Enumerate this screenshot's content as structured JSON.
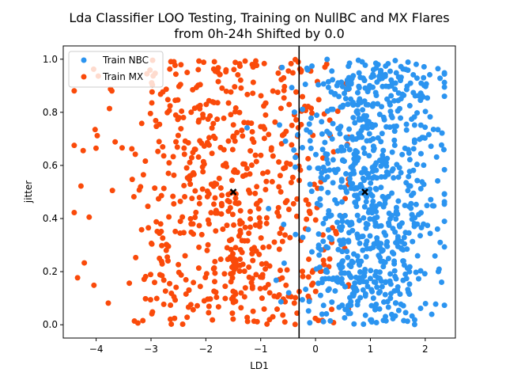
{
  "chart_data": {
    "type": "scatter",
    "title_line1": "Lda Classifier LOO Testing, Training on NullBC and MX Flares",
    "title_line2": "from 0h-24h Shifted by 0.0",
    "xlabel": "LD1",
    "ylabel": "jitter",
    "xlim": [
      -4.6,
      2.55
    ],
    "ylim": [
      -0.05,
      1.05
    ],
    "xticks": [
      -4,
      -3,
      -2,
      -1,
      0,
      1,
      2
    ],
    "yticks": [
      0.0,
      0.2,
      0.4,
      0.6,
      0.8,
      1.0
    ],
    "xtick_labels": [
      "−4",
      "−3",
      "−2",
      "−1",
      "0",
      "1",
      "2"
    ],
    "ytick_labels": [
      "0.0",
      "0.2",
      "0.4",
      "0.6",
      "0.8",
      "1.0"
    ],
    "grid": false,
    "legend_position": "upper-left",
    "decision_boundary_x": -0.3,
    "series": [
      {
        "name": "Train NBC",
        "color": "#2b94f0",
        "count": 800,
        "x_mean": 1.0,
        "x_sd": 0.6,
        "x_range": [
          -2.0,
          2.35
        ]
      },
      {
        "name": "Train MX",
        "color": "#fa4a0a",
        "count": 650,
        "x_mean": -1.5,
        "x_sd": 1.05,
        "x_range": [
          -4.4,
          0.6
        ]
      }
    ],
    "centroids": [
      {
        "x": -1.5,
        "y": 0.5,
        "color": "#000000"
      },
      {
        "x": 0.9,
        "y": 0.5,
        "color": "#000000"
      }
    ]
  }
}
